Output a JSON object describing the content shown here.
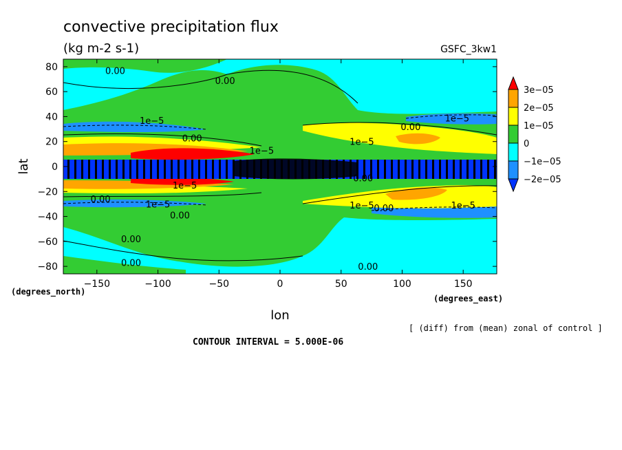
{
  "chart_data": {
    "type": "heatmap",
    "title": "convective precipitation flux",
    "units": "(kg m-2 s-1)",
    "model": "GSFC_3kw1",
    "xlabel": "lon",
    "ylabel": "lat",
    "x_unit_label": "(degrees_east)",
    "y_unit_label": "(degrees_north)",
    "note": "[ (diff) from (mean) zonal of control ]",
    "contour_interval": "CONTOUR INTERVAL = 5.000E-06",
    "xlim": [
      -177.5,
      177.5
    ],
    "ylim": [
      -86,
      86
    ],
    "x_ticks": [
      -150,
      -100,
      -50,
      0,
      50,
      100,
      150
    ],
    "x_tick_labels": [
      "−150",
      "−100",
      "−50",
      "0",
      "50",
      "100",
      "150"
    ],
    "y_ticks": [
      80,
      60,
      40,
      20,
      0,
      -20,
      -40,
      -60,
      -80
    ],
    "y_tick_labels": [
      "80",
      "60",
      "40",
      "20",
      "0",
      "−20",
      "−40",
      "−60",
      "−80"
    ],
    "colorbar": {
      "levels": [
        "3e−05",
        "2e−05",
        "1e−05",
        "0",
        "−1e−05",
        "−2e−05"
      ],
      "colors": [
        "#ff0000",
        "#ffa500",
        "#ffff00",
        "#33cc33",
        "#00ffff",
        "#1e90ff",
        "#0033ff"
      ]
    },
    "contour_labels": [
      {
        "text": "0.00",
        "lon": -135,
        "lat": 77
      },
      {
        "text": "0.00",
        "lon": -45,
        "lat": 69
      },
      {
        "text": "1e−5",
        "lon": -105,
        "lat": 37
      },
      {
        "text": "0.00",
        "lon": -72,
        "lat": 23
      },
      {
        "text": "1e−5",
        "lon": -15,
        "lat": 13
      },
      {
        "text": "1e−5",
        "lon": 67,
        "lat": 20
      },
      {
        "text": "0.00",
        "lon": 107,
        "lat": 32
      },
      {
        "text": "1e−5",
        "lon": 145,
        "lat": 39
      },
      {
        "text": "1e−5",
        "lon": -78,
        "lat": -15
      },
      {
        "text": "0.00",
        "lon": 68,
        "lat": -9
      },
      {
        "text": "0.00",
        "lon": -147,
        "lat": -26
      },
      {
        "text": "1e−5",
        "lon": -100,
        "lat": -30
      },
      {
        "text": "0.00",
        "lon": -82,
        "lat": -39
      },
      {
        "text": "1e−5",
        "lon": 67,
        "lat": -31
      },
      {
        "text": "0.00",
        "lon": 85,
        "lat": -33
      },
      {
        "text": "1e−5",
        "lon": 150,
        "lat": -31
      },
      {
        "text": "0.00",
        "lon": -122,
        "lat": -58
      },
      {
        "text": "0.00",
        "lon": -122,
        "lat": -77
      },
      {
        "text": "0.00",
        "lon": 72,
        "lat": -80
      }
    ]
  }
}
